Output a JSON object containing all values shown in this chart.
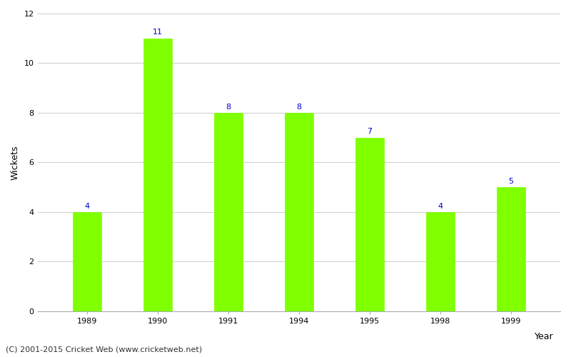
{
  "categories": [
    "1989",
    "1990",
    "1991",
    "1994",
    "1995",
    "1998",
    "1999"
  ],
  "values": [
    4,
    11,
    8,
    8,
    7,
    4,
    5
  ],
  "bar_color": "#7fff00",
  "bar_edgecolor": "#7fff00",
  "label_color": "#0000cc",
  "label_fontsize": 8,
  "xlabel": "Year",
  "ylabel": "Wickets",
  "ylim": [
    0,
    12
  ],
  "yticks": [
    0,
    2,
    4,
    6,
    8,
    10,
    12
  ],
  "grid_color": "#cccccc",
  "background_color": "#ffffff",
  "footer": "(C) 2001-2015 Cricket Web (www.cricketweb.net)",
  "footer_fontsize": 8,
  "axis_label_fontsize": 9,
  "tick_fontsize": 8,
  "bar_width": 0.4
}
